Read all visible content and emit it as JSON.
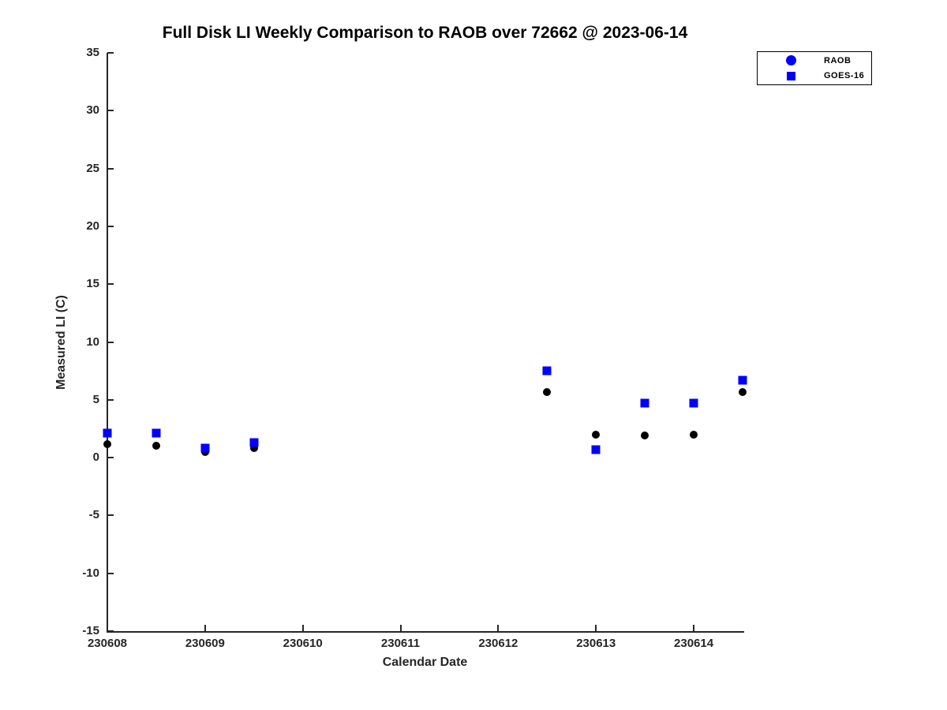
{
  "title": "Full Disk LI Weekly Comparison to RAOB over 72662 @ 2023-06-14",
  "colors": {
    "accent_blue": "#0000ff",
    "marker_black": "#000000",
    "axis_text": "#262626"
  },
  "legend": {
    "items": [
      {
        "label": "RAOB",
        "marker": "circle",
        "color": "#0000ff"
      },
      {
        "label": "GOES-16",
        "marker": "square",
        "color": "#0000ff"
      }
    ]
  },
  "chart_data": {
    "type": "scatter",
    "title": "Full Disk LI Weekly Comparison to RAOB over 72662 @ 2023-06-14",
    "xlabel": "Calendar Date",
    "ylabel": "Measured LI (C)",
    "xlim": [
      230608,
      230614.5
    ],
    "ylim": [
      -15,
      35
    ],
    "x_ticks": [
      230608,
      230609,
      230610,
      230611,
      230612,
      230613,
      230614
    ],
    "y_ticks": [
      35,
      30,
      25,
      20,
      15,
      10,
      5,
      0,
      -5,
      -10,
      -15
    ],
    "grid": false,
    "legend_position": "outside-top-right",
    "series": [
      {
        "name": "RAOB",
        "marker": "circle",
        "color": "#000000",
        "points": [
          {
            "x": 230608.0,
            "y": 1.2
          },
          {
            "x": 230608.5,
            "y": 1.0
          },
          {
            "x": 230609.0,
            "y": 0.5
          },
          {
            "x": 230609.5,
            "y": 0.8
          },
          {
            "x": 230612.5,
            "y": 5.7
          },
          {
            "x": 230613.0,
            "y": 2.0
          },
          {
            "x": 230613.5,
            "y": 1.9
          },
          {
            "x": 230614.0,
            "y": 2.0
          },
          {
            "x": 230614.5,
            "y": 5.7
          }
        ]
      },
      {
        "name": "GOES-16",
        "marker": "square",
        "color": "#0000ff",
        "points": [
          {
            "x": 230608.0,
            "y": 2.1
          },
          {
            "x": 230608.5,
            "y": 2.1
          },
          {
            "x": 230609.0,
            "y": 0.8
          },
          {
            "x": 230609.5,
            "y": 1.3
          },
          {
            "x": 230612.5,
            "y": 7.5
          },
          {
            "x": 230613.0,
            "y": 0.7
          },
          {
            "x": 230613.5,
            "y": 4.7
          },
          {
            "x": 230614.0,
            "y": 4.7
          },
          {
            "x": 230614.5,
            "y": 6.7
          }
        ]
      }
    ]
  }
}
